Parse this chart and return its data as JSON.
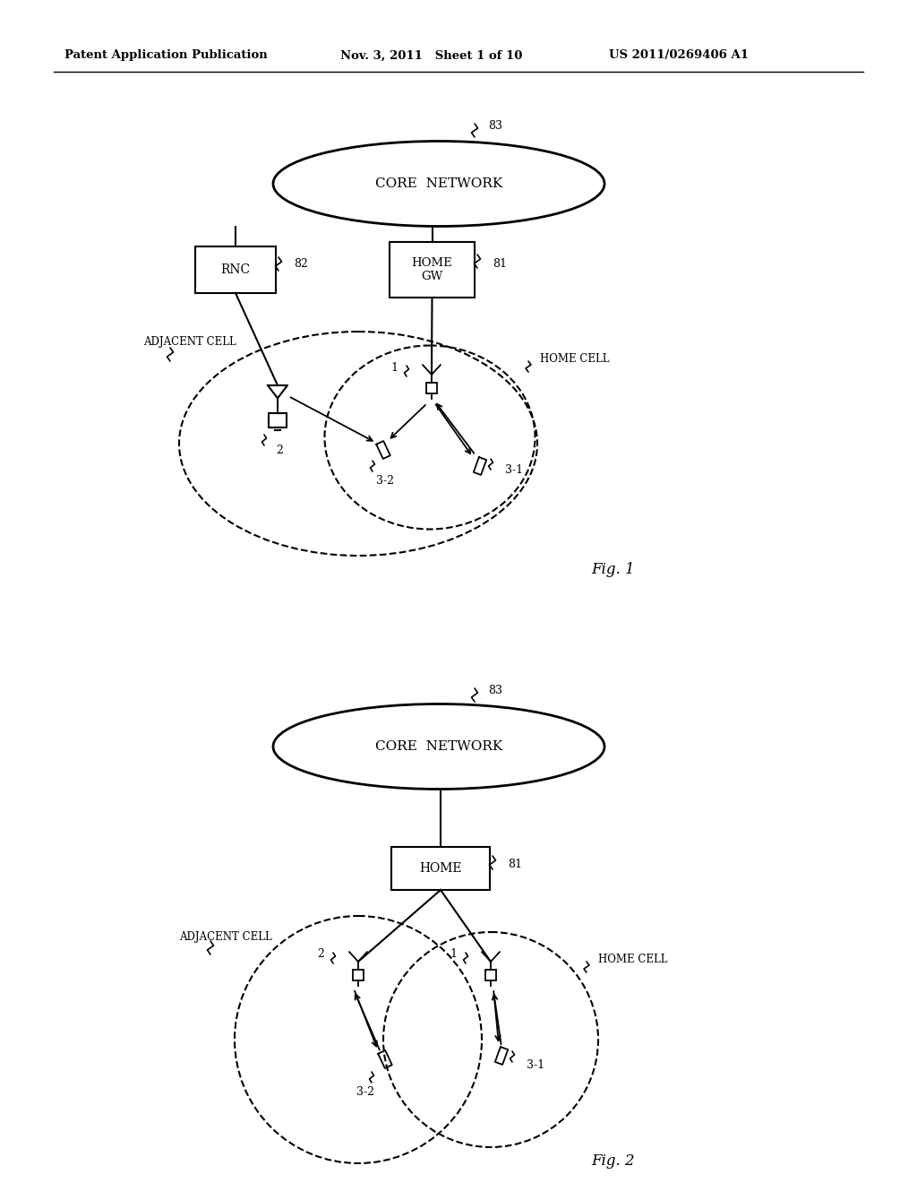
{
  "header_left": "Patent Application Publication",
  "header_mid": "Nov. 3, 2011   Sheet 1 of 10",
  "header_right": "US 2011/0269406 A1",
  "bg_color": "#ffffff",
  "fig1_label": "Fig. 1",
  "fig2_label": "Fig. 2",
  "core_network_text": "CORE  NETWORK",
  "rnc_text": "RNC",
  "home_gw_text": "HOME\nGW",
  "home_text": "HOME",
  "adjacent_cell_text": "ADJACENT CELL",
  "home_cell_text": "HOME CELL",
  "label_83": "83",
  "label_82": "82",
  "label_81": "81",
  "label_2": "2",
  "label_1": "1",
  "label_32": "3-2",
  "label_31": "3-1"
}
